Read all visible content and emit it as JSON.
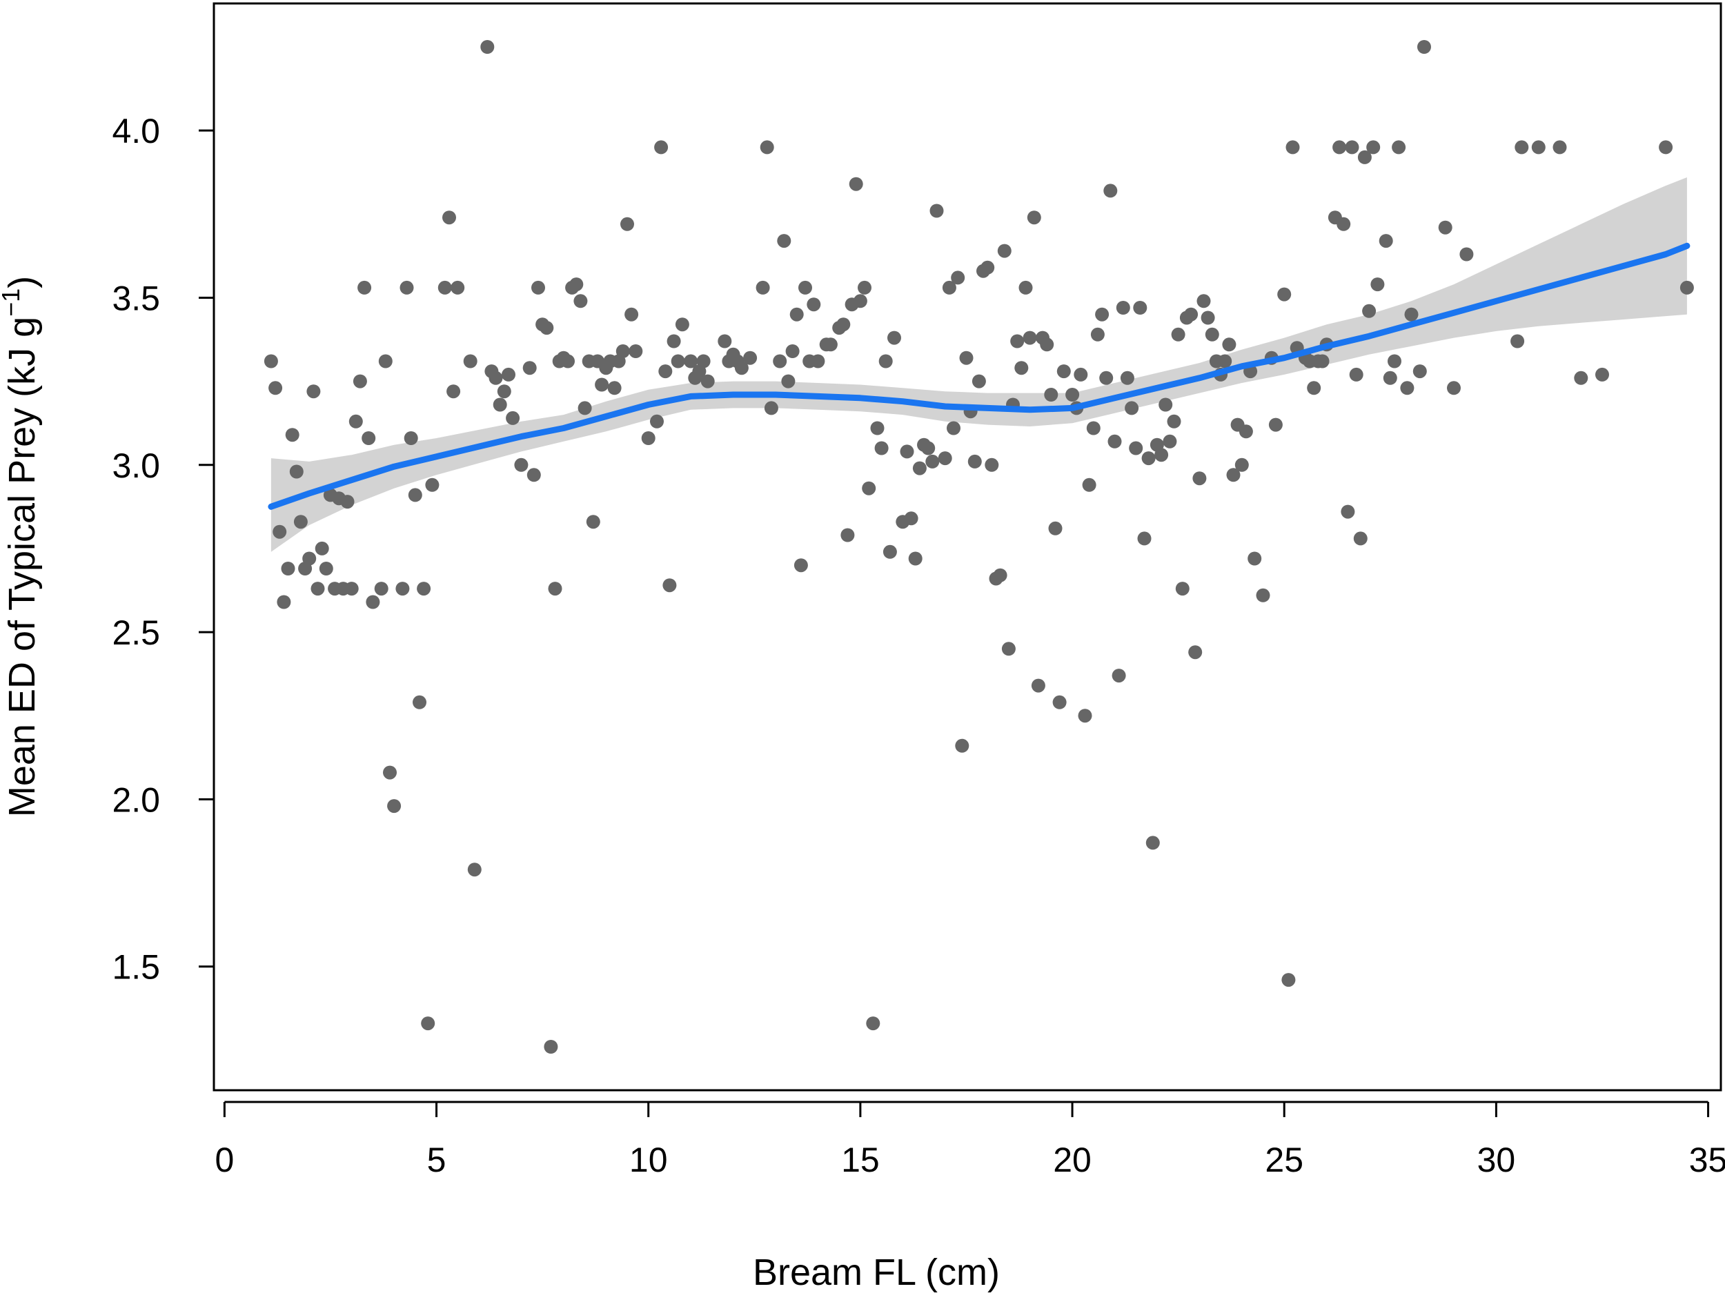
{
  "chart_data": {
    "type": "scatter",
    "title": "",
    "xlabel": "Bream FL (cm)",
    "ylabel_main": "Mean ED of Typical Prey (kJ g",
    "ylabel_sup": "−1",
    "ylabel_close": ")",
    "xlim": [
      -0.25,
      35.3
    ],
    "ylim": [
      1.13,
      4.38
    ],
    "xticks": [
      0,
      5,
      10,
      15,
      20,
      25,
      30,
      35
    ],
    "yticks": [
      1.5,
      2.0,
      2.5,
      3.0,
      3.5,
      4.0
    ],
    "xtick_labels": [
      "0",
      "5",
      "10",
      "15",
      "20",
      "25",
      "30",
      "35"
    ],
    "ytick_labels": [
      "1.5",
      "2.0",
      "2.5",
      "3.0",
      "3.5",
      "4.0"
    ],
    "grid": false,
    "legend": "none",
    "colors": {
      "points": "#666666",
      "smooth_line": "#1a75f0",
      "ci_band": "#d3d3d3"
    },
    "points": [
      [
        1.1,
        3.31
      ],
      [
        1.2,
        3.23
      ],
      [
        1.3,
        2.8
      ],
      [
        1.4,
        2.59
      ],
      [
        1.5,
        2.69
      ],
      [
        1.6,
        3.09
      ],
      [
        1.7,
        2.98
      ],
      [
        1.8,
        2.83
      ],
      [
        1.9,
        2.69
      ],
      [
        2.0,
        2.72
      ],
      [
        2.1,
        3.22
      ],
      [
        2.2,
        2.63
      ],
      [
        2.3,
        2.75
      ],
      [
        2.4,
        2.69
      ],
      [
        2.5,
        2.91
      ],
      [
        2.6,
        2.63
      ],
      [
        2.7,
        2.9
      ],
      [
        2.8,
        2.63
      ],
      [
        2.9,
        2.89
      ],
      [
        3.0,
        2.63
      ],
      [
        3.1,
        3.13
      ],
      [
        3.2,
        3.25
      ],
      [
        3.3,
        3.53
      ],
      [
        3.4,
        3.08
      ],
      [
        3.5,
        2.59
      ],
      [
        3.7,
        2.63
      ],
      [
        3.8,
        3.31
      ],
      [
        3.9,
        2.08
      ],
      [
        4.0,
        1.98
      ],
      [
        4.2,
        2.63
      ],
      [
        4.3,
        3.53
      ],
      [
        4.4,
        3.08
      ],
      [
        4.5,
        2.91
      ],
      [
        4.6,
        2.29
      ],
      [
        4.7,
        2.63
      ],
      [
        4.8,
        1.33
      ],
      [
        4.9,
        2.94
      ],
      [
        5.2,
        3.53
      ],
      [
        5.3,
        3.74
      ],
      [
        5.4,
        3.22
      ],
      [
        5.5,
        3.53
      ],
      [
        5.8,
        3.31
      ],
      [
        5.9,
        1.79
      ],
      [
        6.2,
        4.25
      ],
      [
        6.3,
        3.28
      ],
      [
        6.4,
        3.26
      ],
      [
        6.5,
        3.18
      ],
      [
        6.6,
        3.22
      ],
      [
        6.7,
        3.27
      ],
      [
        6.8,
        3.14
      ],
      [
        7.0,
        3.0
      ],
      [
        7.2,
        3.29
      ],
      [
        7.3,
        2.97
      ],
      [
        7.4,
        3.53
      ],
      [
        7.5,
        3.42
      ],
      [
        7.6,
        3.41
      ],
      [
        7.7,
        1.26
      ],
      [
        7.8,
        2.63
      ],
      [
        7.9,
        3.31
      ],
      [
        8.0,
        3.32
      ],
      [
        8.1,
        3.31
      ],
      [
        8.2,
        3.53
      ],
      [
        8.3,
        3.54
      ],
      [
        8.4,
        3.49
      ],
      [
        8.5,
        3.17
      ],
      [
        8.6,
        3.31
      ],
      [
        8.7,
        2.83
      ],
      [
        8.8,
        3.31
      ],
      [
        8.9,
        3.24
      ],
      [
        9.0,
        3.29
      ],
      [
        9.1,
        3.31
      ],
      [
        9.2,
        3.23
      ],
      [
        9.3,
        3.31
      ],
      [
        9.4,
        3.34
      ],
      [
        9.5,
        3.72
      ],
      [
        9.6,
        3.45
      ],
      [
        9.7,
        3.34
      ],
      [
        10.0,
        3.08
      ],
      [
        10.2,
        3.13
      ],
      [
        10.3,
        3.95
      ],
      [
        10.4,
        3.28
      ],
      [
        10.5,
        2.64
      ],
      [
        10.6,
        3.37
      ],
      [
        10.7,
        3.31
      ],
      [
        10.8,
        3.42
      ],
      [
        11.0,
        3.31
      ],
      [
        11.1,
        3.26
      ],
      [
        11.2,
        3.28
      ],
      [
        11.3,
        3.31
      ],
      [
        11.4,
        3.25
      ],
      [
        11.8,
        3.37
      ],
      [
        11.9,
        3.31
      ],
      [
        12.0,
        3.33
      ],
      [
        12.1,
        3.31
      ],
      [
        12.2,
        3.29
      ],
      [
        12.4,
        3.32
      ],
      [
        12.7,
        3.53
      ],
      [
        12.8,
        3.95
      ],
      [
        12.9,
        3.17
      ],
      [
        13.1,
        3.31
      ],
      [
        13.2,
        3.67
      ],
      [
        13.3,
        3.25
      ],
      [
        13.4,
        3.34
      ],
      [
        13.5,
        3.45
      ],
      [
        13.6,
        2.7
      ],
      [
        13.7,
        3.53
      ],
      [
        13.8,
        3.31
      ],
      [
        13.9,
        3.48
      ],
      [
        14.0,
        3.31
      ],
      [
        14.2,
        3.36
      ],
      [
        14.3,
        3.36
      ],
      [
        14.5,
        3.41
      ],
      [
        14.6,
        3.42
      ],
      [
        14.7,
        2.79
      ],
      [
        14.8,
        3.48
      ],
      [
        14.9,
        3.84
      ],
      [
        15.0,
        3.49
      ],
      [
        15.1,
        3.53
      ],
      [
        15.2,
        2.93
      ],
      [
        15.3,
        1.33
      ],
      [
        15.4,
        3.11
      ],
      [
        15.5,
        3.05
      ],
      [
        15.6,
        3.31
      ],
      [
        15.7,
        2.74
      ],
      [
        15.8,
        3.38
      ],
      [
        16.0,
        2.83
      ],
      [
        16.1,
        3.04
      ],
      [
        16.2,
        2.84
      ],
      [
        16.3,
        2.72
      ],
      [
        16.4,
        2.99
      ],
      [
        16.5,
        3.06
      ],
      [
        16.6,
        3.05
      ],
      [
        16.7,
        3.01
      ],
      [
        16.8,
        3.76
      ],
      [
        17.0,
        3.02
      ],
      [
        17.1,
        3.53
      ],
      [
        17.2,
        3.11
      ],
      [
        17.3,
        3.56
      ],
      [
        17.4,
        2.16
      ],
      [
        17.5,
        3.32
      ],
      [
        17.6,
        3.16
      ],
      [
        17.7,
        3.01
      ],
      [
        17.8,
        3.25
      ],
      [
        17.9,
        3.58
      ],
      [
        18.0,
        3.59
      ],
      [
        18.1,
        3.0
      ],
      [
        18.2,
        2.66
      ],
      [
        18.3,
        2.67
      ],
      [
        18.4,
        3.64
      ],
      [
        18.5,
        2.45
      ],
      [
        18.6,
        3.18
      ],
      [
        18.7,
        3.37
      ],
      [
        18.8,
        3.29
      ],
      [
        18.9,
        3.53
      ],
      [
        19.0,
        3.38
      ],
      [
        19.1,
        3.74
      ],
      [
        19.2,
        2.34
      ],
      [
        19.3,
        3.38
      ],
      [
        19.4,
        3.36
      ],
      [
        19.5,
        3.21
      ],
      [
        19.6,
        2.81
      ],
      [
        19.7,
        2.29
      ],
      [
        19.8,
        3.28
      ],
      [
        20.0,
        3.21
      ],
      [
        20.1,
        3.17
      ],
      [
        20.2,
        3.27
      ],
      [
        20.3,
        2.25
      ],
      [
        20.4,
        2.94
      ],
      [
        20.5,
        3.11
      ],
      [
        20.6,
        3.39
      ],
      [
        20.7,
        3.45
      ],
      [
        20.8,
        3.26
      ],
      [
        20.9,
        3.82
      ],
      [
        21.0,
        3.07
      ],
      [
        21.1,
        2.37
      ],
      [
        21.2,
        3.47
      ],
      [
        21.3,
        3.26
      ],
      [
        21.4,
        3.17
      ],
      [
        21.5,
        3.05
      ],
      [
        21.6,
        3.47
      ],
      [
        21.7,
        2.78
      ],
      [
        21.8,
        3.02
      ],
      [
        21.9,
        1.87
      ],
      [
        22.0,
        3.06
      ],
      [
        22.1,
        3.03
      ],
      [
        22.2,
        3.18
      ],
      [
        22.3,
        3.07
      ],
      [
        22.4,
        3.13
      ],
      [
        22.5,
        3.39
      ],
      [
        22.6,
        2.63
      ],
      [
        22.7,
        3.44
      ],
      [
        22.8,
        3.45
      ],
      [
        22.9,
        2.44
      ],
      [
        23.0,
        2.96
      ],
      [
        23.1,
        3.49
      ],
      [
        23.2,
        3.44
      ],
      [
        23.3,
        3.39
      ],
      [
        23.4,
        3.31
      ],
      [
        23.5,
        3.27
      ],
      [
        23.6,
        3.31
      ],
      [
        23.7,
        3.36
      ],
      [
        23.8,
        2.97
      ],
      [
        23.9,
        3.12
      ],
      [
        24.0,
        3.0
      ],
      [
        24.1,
        3.1
      ],
      [
        24.2,
        3.28
      ],
      [
        24.3,
        2.72
      ],
      [
        24.5,
        2.61
      ],
      [
        24.7,
        3.32
      ],
      [
        24.8,
        3.12
      ],
      [
        25.0,
        3.51
      ],
      [
        25.1,
        1.46
      ],
      [
        25.2,
        3.95
      ],
      [
        25.3,
        3.35
      ],
      [
        25.5,
        3.32
      ],
      [
        25.6,
        3.31
      ],
      [
        25.7,
        3.23
      ],
      [
        25.8,
        3.31
      ],
      [
        25.9,
        3.31
      ],
      [
        26.0,
        3.36
      ],
      [
        26.2,
        3.74
      ],
      [
        26.3,
        3.95
      ],
      [
        26.4,
        3.72
      ],
      [
        26.5,
        2.86
      ],
      [
        26.6,
        3.95
      ],
      [
        26.7,
        3.27
      ],
      [
        26.8,
        2.78
      ],
      [
        26.9,
        3.92
      ],
      [
        27.0,
        3.46
      ],
      [
        27.1,
        3.95
      ],
      [
        27.2,
        3.54
      ],
      [
        27.4,
        3.67
      ],
      [
        27.5,
        3.26
      ],
      [
        27.6,
        3.31
      ],
      [
        27.7,
        3.95
      ],
      [
        27.9,
        3.23
      ],
      [
        28.0,
        3.45
      ],
      [
        28.2,
        3.28
      ],
      [
        28.3,
        4.25
      ],
      [
        28.8,
        3.71
      ],
      [
        29.0,
        3.23
      ],
      [
        29.3,
        3.63
      ],
      [
        30.5,
        3.37
      ],
      [
        30.6,
        3.95
      ],
      [
        31.0,
        3.95
      ],
      [
        31.5,
        3.95
      ],
      [
        32.0,
        3.26
      ],
      [
        32.5,
        3.27
      ],
      [
        34.0,
        3.95
      ],
      [
        34.5,
        3.53
      ]
    ],
    "smooth_line": {
      "x": [
        1.1,
        2,
        3,
        4,
        5,
        6,
        7,
        8,
        9,
        10,
        11,
        12,
        13,
        14,
        15,
        16,
        17,
        18,
        19,
        20,
        21,
        22,
        23,
        24,
        25,
        26,
        27,
        28,
        29,
        30,
        31,
        32,
        33,
        34,
        34.5
      ],
      "y": [
        2.875,
        2.915,
        2.955,
        2.995,
        3.025,
        3.055,
        3.085,
        3.11,
        3.145,
        3.18,
        3.205,
        3.21,
        3.21,
        3.205,
        3.2,
        3.19,
        3.175,
        3.17,
        3.165,
        3.17,
        3.2,
        3.23,
        3.26,
        3.295,
        3.32,
        3.355,
        3.385,
        3.42,
        3.455,
        3.49,
        3.525,
        3.56,
        3.595,
        3.63,
        3.655
      ],
      "ci_low": [
        2.74,
        2.82,
        2.88,
        2.93,
        2.97,
        3.005,
        3.04,
        3.07,
        3.1,
        3.135,
        3.165,
        3.17,
        3.17,
        3.165,
        3.16,
        3.15,
        3.13,
        3.12,
        3.115,
        3.125,
        3.155,
        3.185,
        3.215,
        3.245,
        3.27,
        3.3,
        3.33,
        3.355,
        3.38,
        3.4,
        3.415,
        3.425,
        3.435,
        3.445,
        3.45
      ],
      "ci_high": [
        3.02,
        3.01,
        3.03,
        3.06,
        3.08,
        3.105,
        3.13,
        3.15,
        3.19,
        3.225,
        3.245,
        3.25,
        3.25,
        3.245,
        3.24,
        3.23,
        3.22,
        3.215,
        3.215,
        3.215,
        3.245,
        3.275,
        3.305,
        3.345,
        3.38,
        3.42,
        3.45,
        3.49,
        3.54,
        3.6,
        3.66,
        3.72,
        3.78,
        3.835,
        3.86
      ]
    }
  }
}
